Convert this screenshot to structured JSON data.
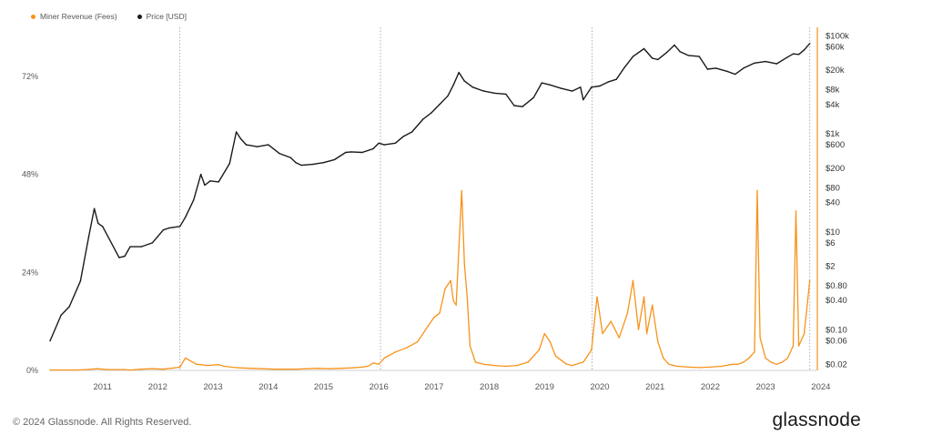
{
  "chart_data": {
    "type": "line",
    "legend_position": "top-left",
    "series": [
      {
        "name": "Miner Revenue (Fees)",
        "color": "#f7931a",
        "axis": "left",
        "unit": "%",
        "x": [
          2010.55,
          2010.8,
          2011.0,
          2011.2,
          2011.4,
          2011.6,
          2011.9,
          2012.0,
          2012.2,
          2012.4,
          2012.6,
          2012.8,
          2012.9,
          2013.0,
          2013.2,
          2013.4,
          2013.6,
          2013.7,
          2013.9,
          2014.0,
          2014.2,
          2014.4,
          2014.6,
          2014.8,
          2015.0,
          2015.2,
          2015.4,
          2015.6,
          2015.8,
          2016.0,
          2016.2,
          2016.3,
          2016.4,
          2016.5,
          2016.6,
          2016.8,
          2017.0,
          2017.2,
          2017.4,
          2017.5,
          2017.6,
          2017.7,
          2017.8,
          2017.85,
          2017.9,
          2017.95,
          2018.0,
          2018.05,
          2018.1,
          2018.15,
          2018.25,
          2018.4,
          2018.6,
          2018.8,
          2019.0,
          2019.2,
          2019.4,
          2019.5,
          2019.6,
          2019.7,
          2019.9,
          2020.0,
          2020.2,
          2020.35,
          2020.45,
          2020.55,
          2020.7,
          2020.85,
          2021.0,
          2021.1,
          2021.2,
          2021.3,
          2021.35,
          2021.45,
          2021.55,
          2021.65,
          2021.75,
          2021.9,
          2022.1,
          2022.3,
          2022.5,
          2022.7,
          2022.9,
          2023.0,
          2023.1,
          2023.2,
          2023.3,
          2023.35,
          2023.4,
          2023.5,
          2023.6,
          2023.7,
          2023.8,
          2023.9,
          2024.0,
          2024.05,
          2024.1,
          2024.2,
          2024.3
        ],
        "y": [
          0.1,
          0.1,
          0.1,
          0.2,
          0.4,
          0.2,
          0.2,
          0.1,
          0.3,
          0.4,
          0.3,
          0.6,
          0.8,
          3.0,
          1.5,
          1.2,
          1.4,
          1.0,
          0.7,
          0.6,
          0.5,
          0.4,
          0.3,
          0.3,
          0.3,
          0.4,
          0.5,
          0.4,
          0.5,
          0.6,
          0.8,
          1.0,
          1.8,
          1.5,
          3.0,
          4.5,
          5.5,
          7.0,
          11.0,
          13.0,
          14.0,
          20.0,
          22.0,
          17.0,
          16.0,
          30.0,
          44.0,
          26.0,
          18.0,
          6.0,
          2.0,
          1.5,
          1.2,
          1.0,
          1.2,
          2.0,
          5.0,
          9.0,
          7.0,
          3.5,
          1.5,
          1.2,
          2.0,
          5.0,
          18.0,
          9.0,
          12.0,
          8.0,
          14.0,
          22.0,
          10.0,
          18.0,
          9.0,
          16.0,
          7.0,
          3.0,
          1.5,
          1.0,
          0.8,
          0.7,
          0.8,
          1.0,
          1.5,
          1.5,
          2.0,
          3.0,
          4.5,
          44.0,
          8.0,
          3.0,
          2.0,
          1.5,
          2.0,
          3.0,
          6.0,
          39.0,
          6.0,
          9.0,
          22.0
        ]
      },
      {
        "name": "Price [USD]",
        "color": "#1a1a1a",
        "axis": "right",
        "unit": "USD",
        "x": [
          2010.55,
          2010.75,
          2010.9,
          2011.1,
          2011.25,
          2011.35,
          2011.42,
          2011.5,
          2011.6,
          2011.8,
          2011.9,
          2012.0,
          2012.2,
          2012.4,
          2012.6,
          2012.7,
          2012.9,
          2013.0,
          2013.15,
          2013.28,
          2013.35,
          2013.45,
          2013.6,
          2013.8,
          2013.92,
          2014.0,
          2014.1,
          2014.3,
          2014.5,
          2014.7,
          2014.9,
          2015.0,
          2015.1,
          2015.3,
          2015.5,
          2015.7,
          2015.9,
          2016.0,
          2016.2,
          2016.4,
          2016.5,
          2016.6,
          2016.8,
          2016.95,
          2017.1,
          2017.3,
          2017.45,
          2017.6,
          2017.75,
          2017.85,
          2017.95,
          2018.05,
          2018.2,
          2018.4,
          2018.6,
          2018.8,
          2018.95,
          2019.1,
          2019.3,
          2019.45,
          2019.6,
          2019.8,
          2020.0,
          2020.15,
          2020.2,
          2020.35,
          2020.5,
          2020.65,
          2020.8,
          2020.95,
          2021.1,
          2021.3,
          2021.45,
          2021.55,
          2021.7,
          2021.85,
          2021.95,
          2022.1,
          2022.3,
          2022.45,
          2022.6,
          2022.8,
          2022.95,
          2023.1,
          2023.3,
          2023.5,
          2023.7,
          2023.9,
          2024.0,
          2024.1,
          2024.2,
          2024.3
        ],
        "y": [
          0.06,
          0.2,
          0.3,
          1.0,
          8.0,
          30.0,
          15.0,
          13.0,
          8.0,
          3.0,
          3.2,
          5.0,
          5.0,
          6.0,
          11.0,
          12.0,
          13.0,
          20.0,
          45.0,
          150.0,
          90.0,
          110.0,
          105.0,
          250.0,
          1100.0,
          800.0,
          600.0,
          550.0,
          600.0,
          400.0,
          330.0,
          260.0,
          230.0,
          240.0,
          260.0,
          300.0,
          420.0,
          430.0,
          420.0,
          500.0,
          650.0,
          600.0,
          650.0,
          900.0,
          1100.0,
          2000.0,
          2700.0,
          4000.0,
          6000.0,
          10000.0,
          18000.0,
          12000.0,
          9000.0,
          7500.0,
          6800.0,
          6500.0,
          3800.0,
          3600.0,
          5500.0,
          11000.0,
          10000.0,
          8500.0,
          7500.0,
          9000.0,
          5000.0,
          9000.0,
          9500.0,
          11500.0,
          13000.0,
          23000.0,
          38000.0,
          55000.0,
          35000.0,
          33000.0,
          45000.0,
          65000.0,
          48000.0,
          40000.0,
          38000.0,
          21000.0,
          22000.0,
          19000.0,
          16500.0,
          22000.0,
          28000.0,
          30000.0,
          27000.0,
          37000.0,
          43000.0,
          42000.0,
          52000.0,
          70000.0
        ]
      }
    ],
    "x_range": [
      2010.55,
      2024.42
    ],
    "x_ticks": [
      "2011",
      "2012",
      "2013",
      "2014",
      "2015",
      "2016",
      "2017",
      "2018",
      "2019",
      "2020",
      "2021",
      "2022",
      "2023",
      "2024"
    ],
    "halving_lines": [
      2012.9,
      2016.53,
      2020.36,
      2024.3
    ],
    "left_axis": {
      "scale": "linear",
      "range": [
        0,
        84
      ],
      "ticks": [
        "0%",
        "24%",
        "48%",
        "72%"
      ]
    },
    "right_axis": {
      "scale": "log",
      "range": [
        0.015,
        150000
      ],
      "ticks": [
        "$100k",
        "$60k",
        "$20k",
        "$8k",
        "$4k",
        "$1k",
        "$600",
        "$200",
        "$80",
        "$40",
        "$10",
        "$6",
        "$2",
        "$0.80",
        "$0.40",
        "$0.10",
        "$0.06",
        "$0.02"
      ]
    },
    "grid": false
  },
  "footer": {
    "copyright": "© 2024 Glassnode. All Rights Reserved.",
    "brand": "glassnode"
  }
}
